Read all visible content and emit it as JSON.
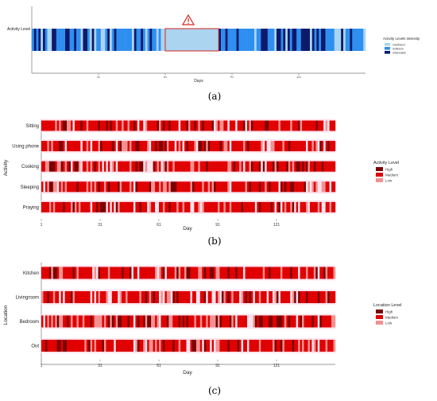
{
  "panels": {
    "a": {
      "caption": "(a)"
    },
    "b": {
      "caption": "(b)"
    },
    "c": {
      "caption": "(c)"
    }
  },
  "chart_data": [
    {
      "id": "a",
      "type": "heatmap",
      "title": "",
      "xlabel": "Days",
      "ylabel": "",
      "row_label": "Activity Level",
      "xticks": [
        "31",
        "61",
        "91",
        "121"
      ],
      "legend": {
        "title": "Activity Levels intensity",
        "entries": [
          "Insufficient",
          "Sufficient",
          "Observable"
        ],
        "colors": [
          "#aad4f0",
          "#2f8ff0",
          "#0d1a6b"
        ],
        "placement": "right"
      },
      "warning_icon": "warning-triangle-icon",
      "highlight_range": [
        61,
        85
      ],
      "days": 150,
      "seed": 7
    },
    {
      "id": "b",
      "type": "heatmap",
      "xlabel": "Day",
      "ylabel": "Activity",
      "rows": [
        "Sitting",
        "Using phone",
        "Cooking",
        "Sleeping",
        "Praying"
      ],
      "xticks": [
        "1",
        "31",
        "61",
        "91",
        "121"
      ],
      "legend": {
        "title": "Activity Level",
        "entries": [
          "High",
          "Medium",
          "Low"
        ],
        "colors": [
          "#7a0000",
          "#e00000",
          "#f29090"
        ],
        "placement": "right"
      },
      "days": 150,
      "seed": 21
    },
    {
      "id": "c",
      "type": "heatmap",
      "xlabel": "Day",
      "ylabel": "Location",
      "rows": [
        "Kitchen",
        "Livingroom",
        "Bedroom",
        "Out"
      ],
      "xticks": [
        "1",
        "31",
        "61",
        "91",
        "121"
      ],
      "legend": {
        "title": "Location Level",
        "entries": [
          "High",
          "Medium",
          "Low"
        ],
        "colors": [
          "#7a0000",
          "#e00000",
          "#f29090"
        ],
        "placement": "right"
      },
      "days": 150,
      "seed": 55
    }
  ]
}
